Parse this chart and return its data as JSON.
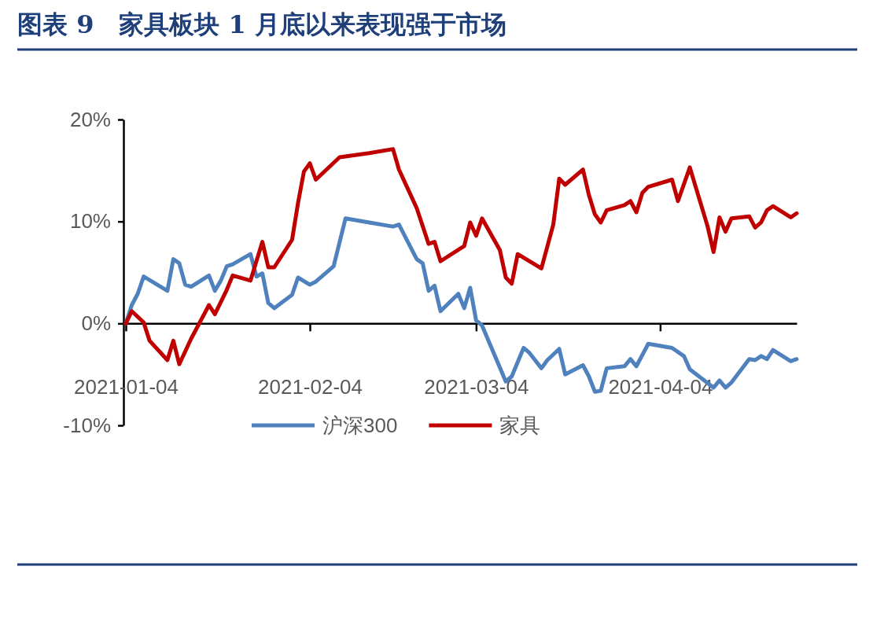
{
  "chart_data": {
    "type": "line",
    "title": "图表 9　家具板块 1 月底以来表现强于市场",
    "xlim": [
      "2021-01-04",
      "2021-04-27"
    ],
    "xticks": [
      {
        "value": "2021-01-04",
        "label": "2021-01-04"
      },
      {
        "value": "2021-02-04",
        "label": "2021-02-04"
      },
      {
        "value": "2021-03-04",
        "label": "2021-03-04"
      },
      {
        "value": "2021-04-04",
        "label": "2021-04-04"
      }
    ],
    "ylim": [
      -10,
      20
    ],
    "yticks": [
      {
        "value": -10,
        "label": "-10%"
      },
      {
        "value": 0,
        "label": "0%"
      },
      {
        "value": 10,
        "label": "10%"
      },
      {
        "value": 20,
        "label": "20%"
      }
    ],
    "grid": false,
    "legend": "bottom",
    "series": [
      {
        "name": "沪深300",
        "color": "#4f81bd",
        "x": [
          "2021-01-04",
          "2021-01-05",
          "2021-01-06",
          "2021-01-07",
          "2021-01-11",
          "2021-01-12",
          "2021-01-13",
          "2021-01-14",
          "2021-01-15",
          "2021-01-18",
          "2021-01-19",
          "2021-01-20",
          "2021-01-21",
          "2021-01-22",
          "2021-01-25",
          "2021-01-26",
          "2021-01-27",
          "2021-01-28",
          "2021-01-29",
          "2021-02-01",
          "2021-02-02",
          "2021-02-04",
          "2021-02-05",
          "2021-02-08",
          "2021-02-10",
          "2021-02-14",
          "2021-02-18",
          "2021-02-19",
          "2021-02-22",
          "2021-02-23",
          "2021-02-24",
          "2021-02-25",
          "2021-02-26",
          "2021-03-01",
          "2021-03-02",
          "2021-03-03",
          "2021-03-04",
          "2021-03-05",
          "2021-03-09",
          "2021-03-10",
          "2021-03-12",
          "2021-03-13",
          "2021-03-15",
          "2021-03-16",
          "2021-03-18",
          "2021-03-19",
          "2021-03-22",
          "2021-03-23",
          "2021-03-24",
          "2021-03-25",
          "2021-03-26",
          "2021-03-29",
          "2021-03-30",
          "2021-03-31",
          "2021-04-02",
          "2021-04-06",
          "2021-04-08",
          "2021-04-09",
          "2021-04-13",
          "2021-04-14",
          "2021-04-15",
          "2021-04-16",
          "2021-04-19",
          "2021-04-20",
          "2021-04-21",
          "2021-04-22",
          "2021-04-23",
          "2021-04-26",
          "2021-04-27"
        ],
        "values": [
          0,
          1.8,
          2.9,
          4.6,
          3.2,
          6.3,
          5.9,
          3.8,
          3.6,
          4.7,
          3.2,
          4.2,
          5.6,
          5.8,
          6.8,
          4.6,
          4.9,
          2.0,
          1.5,
          2.8,
          4.5,
          3.8,
          4.1,
          5.6,
          10.3,
          9.9,
          9.5,
          9.7,
          6.3,
          5.9,
          3.2,
          3.7,
          1.2,
          2.9,
          1.5,
          3.5,
          0.3,
          -0.2,
          -5.7,
          -5.2,
          -2.4,
          -2.9,
          -4.4,
          -3.6,
          -2.5,
          -5.0,
          -4.1,
          -5.2,
          -6.7,
          -6.6,
          -4.4,
          -4.2,
          -3.5,
          -4.2,
          -2.0,
          -2.4,
          -3.2,
          -4.5,
          -6.3,
          -5.6,
          -6.3,
          -5.8,
          -3.5,
          -3.6,
          -3.2,
          -3.5,
          -2.6,
          -3.7,
          -3.5
        ]
      },
      {
        "name": "家具",
        "color": "#c00000",
        "x": [
          "2021-01-04",
          "2021-01-05",
          "2021-01-07",
          "2021-01-08",
          "2021-01-11",
          "2021-01-12",
          "2021-01-13",
          "2021-01-15",
          "2021-01-18",
          "2021-01-19",
          "2021-01-21",
          "2021-01-22",
          "2021-01-25",
          "2021-01-27",
          "2021-01-28",
          "2021-01-29",
          "2021-02-01",
          "2021-02-02",
          "2021-02-03",
          "2021-02-04",
          "2021-02-05",
          "2021-02-09",
          "2021-02-14",
          "2021-02-18",
          "2021-02-19",
          "2021-02-22",
          "2021-02-24",
          "2021-02-25",
          "2021-02-26",
          "2021-03-02",
          "2021-03-03",
          "2021-03-04",
          "2021-03-05",
          "2021-03-08",
          "2021-03-09",
          "2021-03-10",
          "2021-03-11",
          "2021-03-15",
          "2021-03-17",
          "2021-03-18",
          "2021-03-19",
          "2021-03-22",
          "2021-03-23",
          "2021-03-24",
          "2021-03-25",
          "2021-03-26",
          "2021-03-29",
          "2021-03-30",
          "2021-03-31",
          "2021-04-01",
          "2021-04-02",
          "2021-04-06",
          "2021-04-07",
          "2021-04-09",
          "2021-04-12",
          "2021-04-13",
          "2021-04-14",
          "2021-04-15",
          "2021-04-16",
          "2021-04-19",
          "2021-04-20",
          "2021-04-21",
          "2021-04-22",
          "2021-04-23",
          "2021-04-26",
          "2021-04-27"
        ],
        "values": [
          0,
          1.2,
          0.1,
          -1.7,
          -3.6,
          -1.7,
          -4.0,
          -1.5,
          1.8,
          0.9,
          3.3,
          4.7,
          4.2,
          8.0,
          5.5,
          5.5,
          8.2,
          11.8,
          14.9,
          15.7,
          14.1,
          16.3,
          16.7,
          17.1,
          15.1,
          11.3,
          7.8,
          8.0,
          6.1,
          7.6,
          9.9,
          8.6,
          10.3,
          7.2,
          4.5,
          3.9,
          6.8,
          5.4,
          9.7,
          14.2,
          13.6,
          15.1,
          12.6,
          10.7,
          9.9,
          11.1,
          11.6,
          12.0,
          10.9,
          12.8,
          13.4,
          14.1,
          12.0,
          15.3,
          9.5,
          7.0,
          10.4,
          9.0,
          10.3,
          10.5,
          9.4,
          9.9,
          11.1,
          11.5,
          10.4,
          10.8
        ]
      }
    ]
  }
}
